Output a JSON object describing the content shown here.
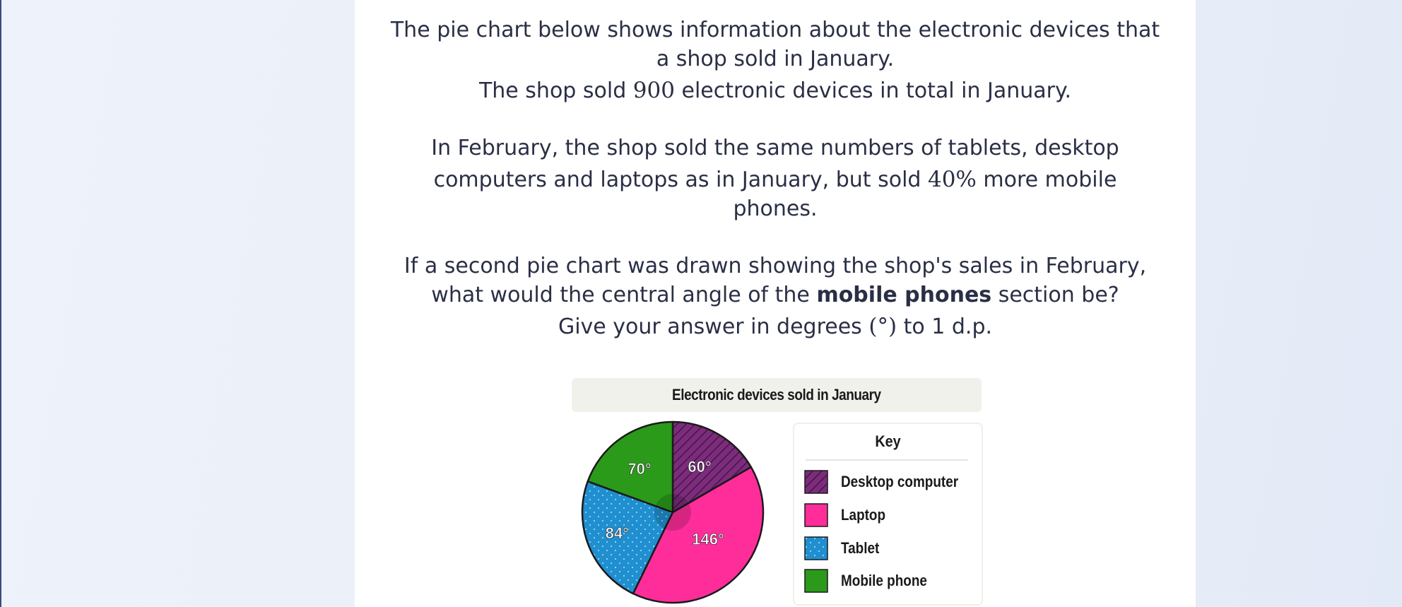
{
  "question": {
    "line1": "The pie chart below shows information about the electronic devices that",
    "line2": "a shop sold in January.",
    "line3_pre": "The shop sold ",
    "line3_num": "900",
    "line3_post": " electronic devices in total in January.",
    "line4": "In February, the shop sold the same numbers of tablets, desktop",
    "line5_pre": "computers and laptops as in January, but sold ",
    "line5_num": "40%",
    "line5_post": " more mobile",
    "line6": "phones.",
    "line7": "If a second pie chart was drawn showing the shop's sales in February,",
    "line8_pre": "what would the central angle of the ",
    "line8_bold": "mobile phones",
    "line8_post": " section be?",
    "line9_pre": "Give your answer in degrees ",
    "line9_sym": "(°)",
    "line9_post": " to 1 d.p."
  },
  "chart_data": {
    "type": "pie",
    "title": "Electronic devices sold in January",
    "unit": "degrees",
    "slices": [
      {
        "name": "Desktop computer",
        "value": 60,
        "label": "60°",
        "color": "#7b2d7b",
        "pattern": "diagonal-hatch"
      },
      {
        "name": "Laptop",
        "value": 146,
        "label": "146°",
        "color": "#ff2d9a",
        "pattern": "solid"
      },
      {
        "name": "Tablet",
        "value": 84,
        "label": "84°",
        "color": "#1f8fd0",
        "pattern": "dots"
      },
      {
        "name": "Mobile phone",
        "value": 70,
        "label": "70°",
        "color": "#2b9a1a",
        "pattern": "solid"
      }
    ],
    "legend": {
      "title": "Key",
      "placement": "right"
    }
  },
  "colors": {
    "text": "#2a2f45",
    "outline": "#1a1a1a"
  }
}
